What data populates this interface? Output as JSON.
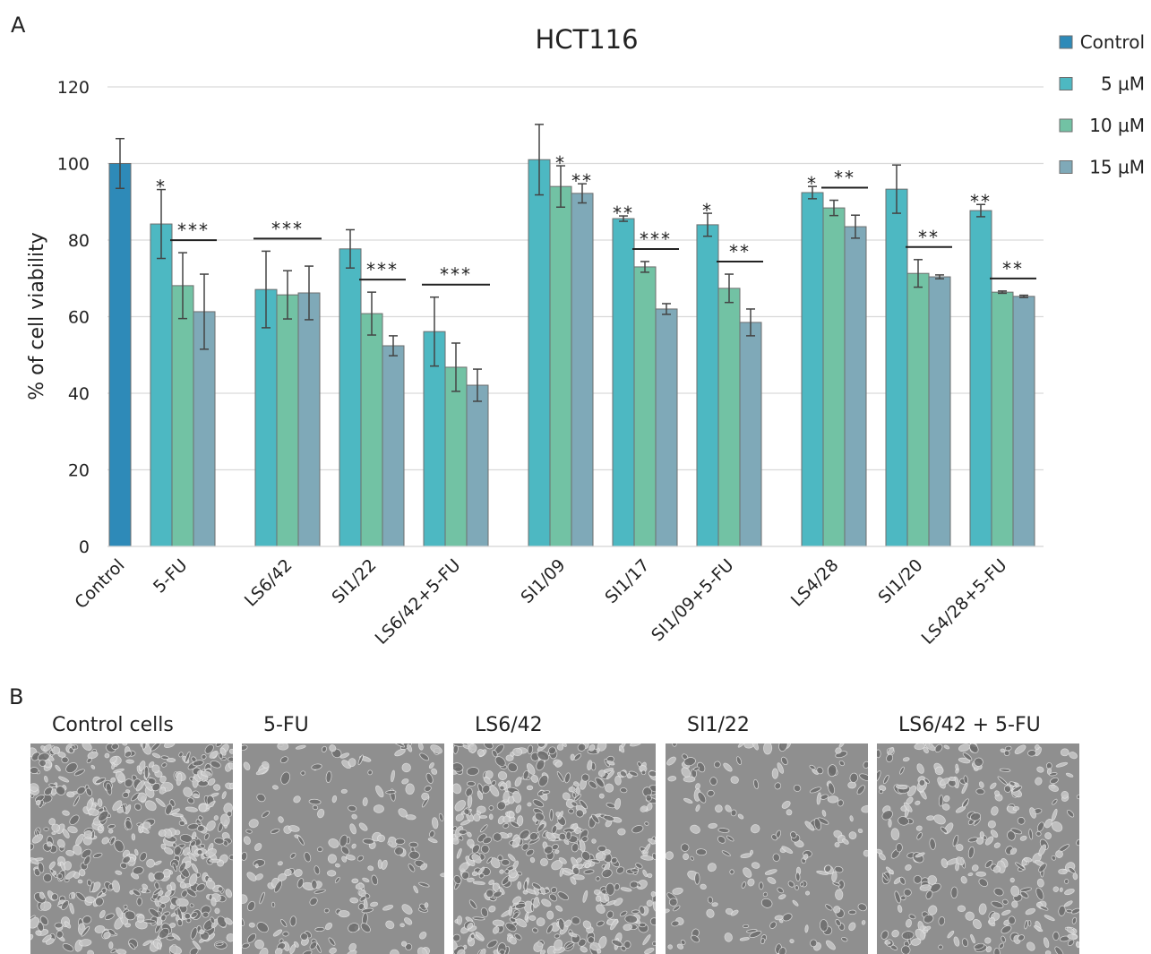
{
  "chart_data": {
    "type": "bar",
    "panel_label": "A",
    "title": "HCT116",
    "y_label": "% of cell viability",
    "categories": [
      "Control",
      "5-FU",
      "LS6/42",
      "SI1/22",
      "LS6/42+5-FU",
      "SI1/09",
      "SI1/17",
      "SI1/09+5-FU",
      "LS4/28",
      "SI1/20",
      "LS4/28+5-FU"
    ],
    "series": [
      {
        "name": "Control",
        "color": "#2e8ab8",
        "values": [
          100,
          null,
          null,
          null,
          null,
          null,
          null,
          null,
          null,
          null,
          null
        ],
        "errors": [
          6.5,
          null,
          null,
          null,
          null,
          null,
          null,
          null,
          null,
          null,
          null
        ],
        "significance": [
          null,
          null,
          null,
          null,
          null,
          null,
          null,
          null,
          null,
          null,
          null
        ]
      },
      {
        "name": "5 µM",
        "color": "#4db8c2",
        "values": [
          null,
          84.2,
          67.1,
          77.7,
          56.1,
          101,
          85.6,
          84,
          92.4,
          93.3,
          87.7
        ],
        "errors": [
          null,
          9,
          10,
          5,
          9,
          9.2,
          0.7,
          3,
          1.6,
          6.3,
          1.6
        ],
        "significance": [
          null,
          "*",
          null,
          null,
          null,
          null,
          "**",
          "*",
          "*",
          null,
          "**"
        ]
      },
      {
        "name": "10 µM",
        "color": "#72c2a4",
        "values": [
          null,
          68.1,
          65.7,
          60.8,
          46.8,
          94,
          73,
          67.4,
          88.4,
          71.3,
          66.4
        ],
        "errors": [
          null,
          8.6,
          6.3,
          5.6,
          6.3,
          5.4,
          1.4,
          3.7,
          2,
          3.6,
          0.3
        ],
        "significance": [
          null,
          null,
          null,
          null,
          null,
          "*",
          null,
          null,
          null,
          null,
          null
        ]
      },
      {
        "name": "15 µM",
        "color": "#7fa9b8",
        "values": [
          null,
          61.3,
          66.2,
          52.4,
          42.1,
          92.2,
          62,
          58.5,
          83.5,
          70.4,
          65.3
        ],
        "errors": [
          null,
          9.8,
          7,
          2.6,
          4.2,
          2.5,
          1.4,
          3.5,
          3,
          0.5,
          0.3
        ],
        "significance": [
          null,
          null,
          null,
          null,
          null,
          "**",
          null,
          null,
          null,
          null,
          null
        ]
      }
    ],
    "brackets": [
      {
        "category": "5-FU",
        "series": [
          "10 µM",
          "15 µM"
        ],
        "label": "***"
      },
      {
        "category": "LS6/42",
        "series": [
          "5 µM",
          "10 µM",
          "15 µM"
        ],
        "label": "***"
      },
      {
        "category": "SI1/22",
        "series": [
          "10 µM",
          "15 µM"
        ],
        "label": "***"
      },
      {
        "category": "LS6/42+5-FU",
        "series": [
          "5 µM",
          "10 µM",
          "15 µM"
        ],
        "label": "***"
      },
      {
        "category": "SI1/17",
        "series": [
          "10 µM",
          "15 µM"
        ],
        "label": "***"
      },
      {
        "category": "SI1/09+5-FU",
        "series": [
          "10 µM",
          "15 µM"
        ],
        "label": "**"
      },
      {
        "category": "LS4/28",
        "series": [
          "10 µM",
          "15 µM"
        ],
        "label": "**"
      },
      {
        "category": "SI1/20",
        "series": [
          "10 µM",
          "15 µM"
        ],
        "label": "**"
      },
      {
        "category": "LS4/28+5-FU",
        "series": [
          "10 µM",
          "15 µM"
        ],
        "label": "**"
      }
    ],
    "ylim": [
      0,
      120
    ],
    "yticks": [
      0,
      20,
      40,
      60,
      80,
      100,
      120
    ],
    "grid": true,
    "legend": "top-right"
  },
  "panel_b": {
    "label": "B",
    "images": [
      {
        "caption": "Control cells"
      },
      {
        "caption": "5-FU"
      },
      {
        "caption": "LS6/42"
      },
      {
        "caption": "SI1/22"
      },
      {
        "caption": "LS6/42 + 5-FU"
      }
    ]
  }
}
